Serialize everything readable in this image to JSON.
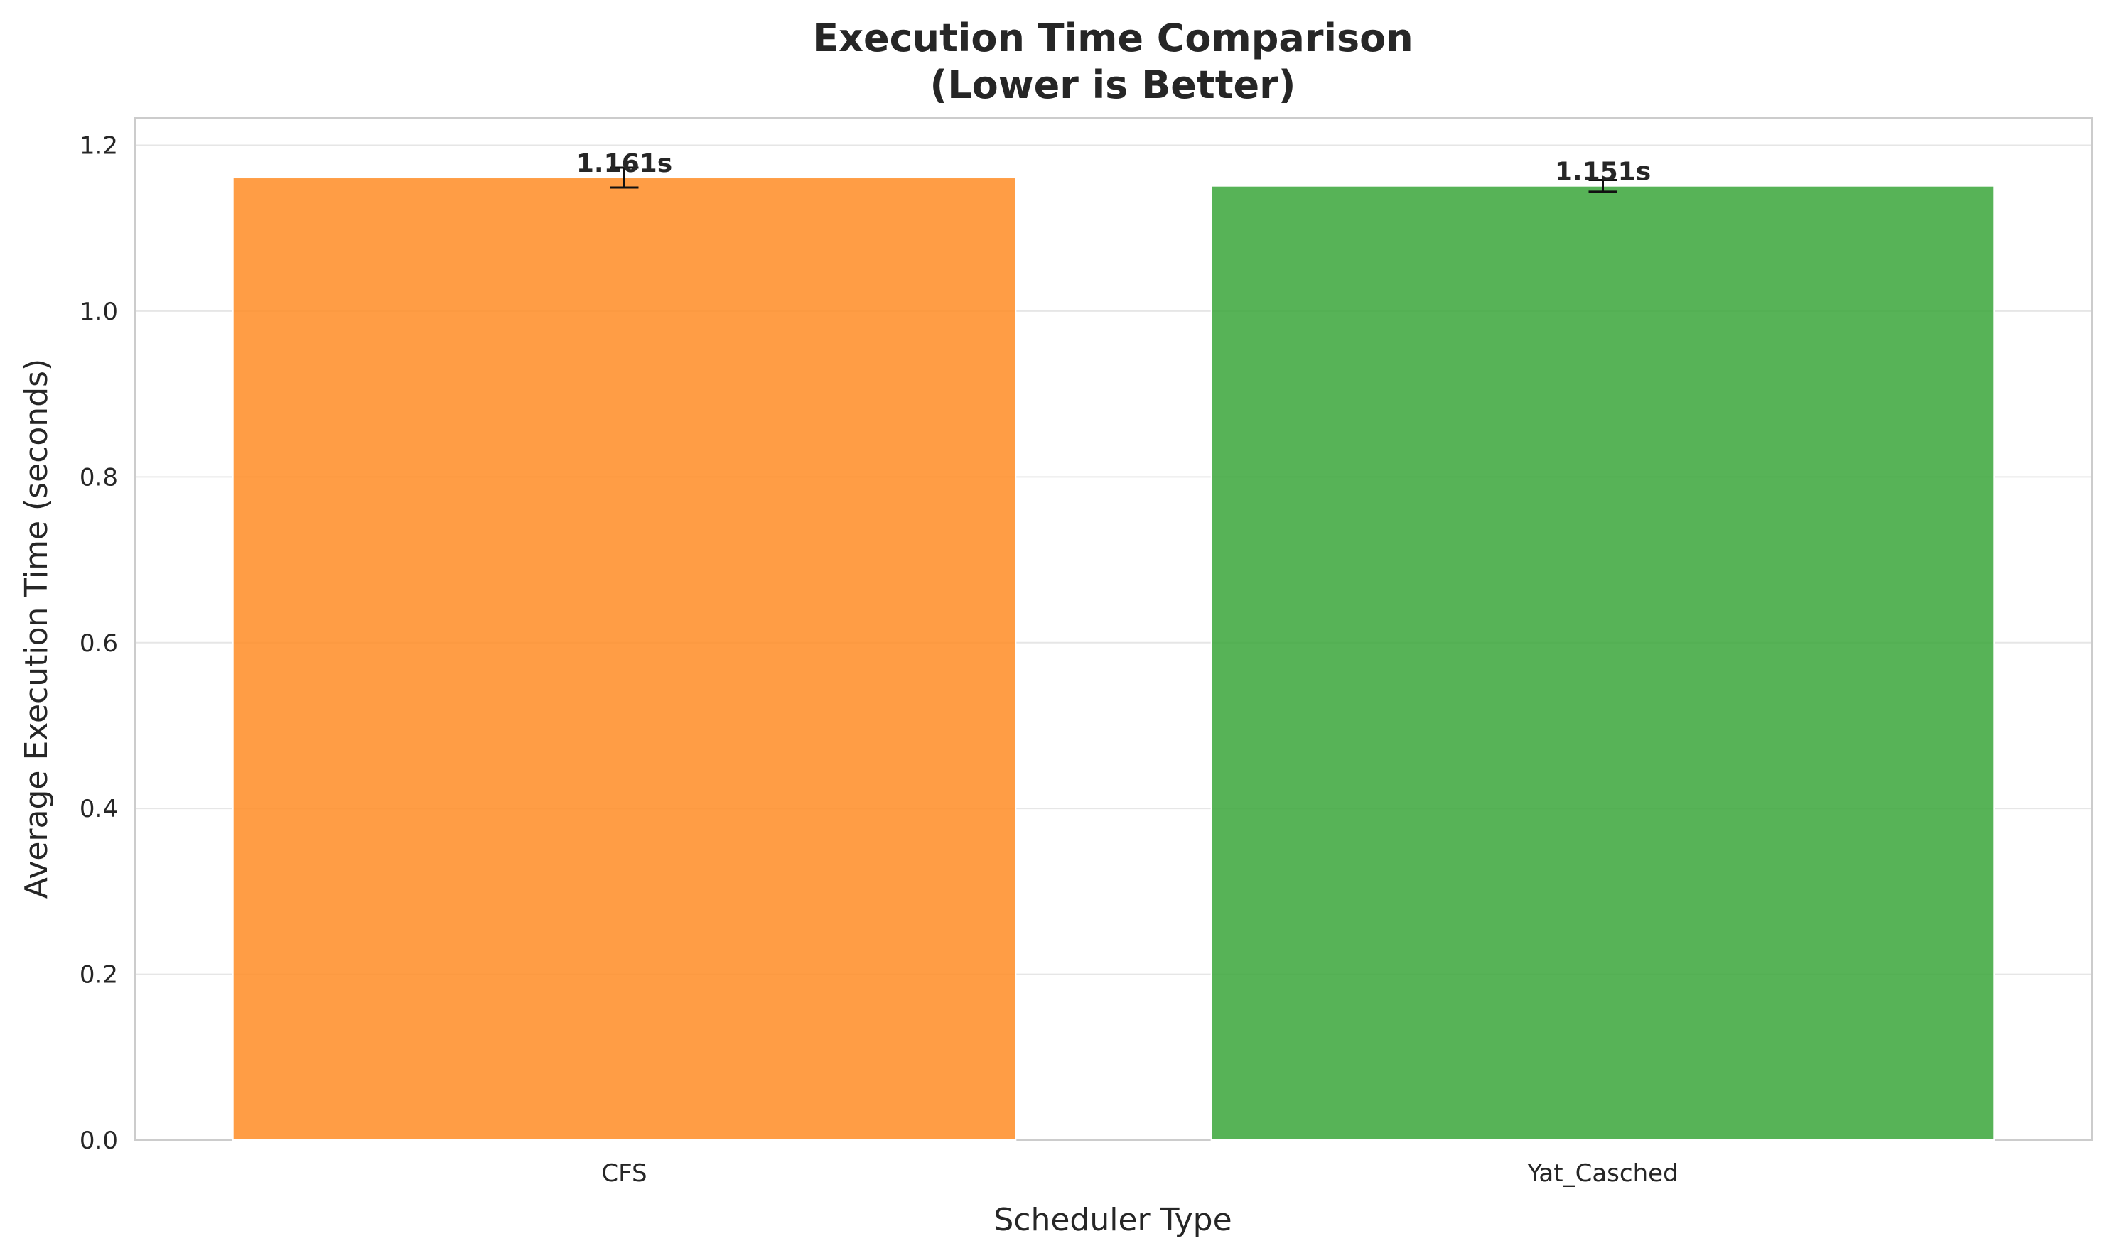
{
  "chart_data": {
    "type": "bar",
    "title": "Execution Time Comparison",
    "subtitle": "(Lower is Better)",
    "xlabel": "Scheduler Type",
    "ylabel": "Average Execution Time (seconds)",
    "categories": [
      "CFS",
      "Yat_Casched"
    ],
    "values": [
      1.161,
      1.151
    ],
    "errors": [
      0.012,
      0.007
    ],
    "data_labels": [
      "1.161s",
      "1.151s"
    ],
    "colors": [
      "#ff8c24",
      "#3aa63a"
    ],
    "ylim": [
      0,
      1.233
    ],
    "yticks": [
      0.0,
      0.2,
      0.4,
      0.6,
      0.8,
      1.0,
      1.2
    ],
    "ytick_labels": [
      "0.0",
      "0.2",
      "0.4",
      "0.6",
      "0.8",
      "1.0",
      "1.2"
    ],
    "grid": true,
    "legend": "none"
  }
}
